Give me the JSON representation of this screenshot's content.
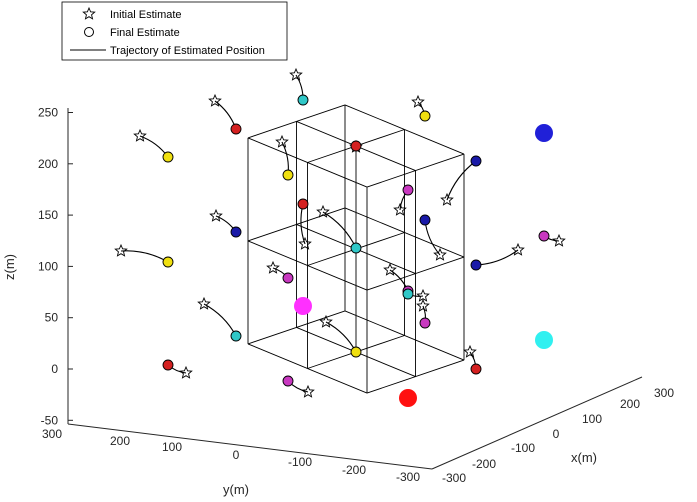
{
  "chart_data": {
    "type": "scatter",
    "title": "",
    "xlabel": "x(m)",
    "ylabel": "y(m)",
    "zlabel": "z(m)",
    "xlim": [
      -300,
      300
    ],
    "ylim": [
      -300,
      300
    ],
    "zlim": [
      -50,
      250
    ],
    "x_ticks": [
      "-300",
      "-200",
      "-100",
      "0",
      "100",
      "200",
      "300"
    ],
    "y_ticks": [
      "200",
      "100",
      "0",
      "-100",
      "-200",
      "-300"
    ],
    "y_top_tick": "300",
    "z_ticks": [
      "-50",
      "0",
      "50",
      "100",
      "150",
      "200",
      "250"
    ],
    "legend": {
      "position": "top-left",
      "items": [
        {
          "label": "Initial Estimate",
          "marker": "star"
        },
        {
          "label": "Final Estimate",
          "marker": "circle"
        },
        {
          "label": "Trajectory of Estimated Position",
          "marker": "line"
        }
      ]
    },
    "grid_lines_color": "#000000",
    "colors": {
      "yellow": "#f0e010",
      "red": "#d42020",
      "blue": "#1a1aa8",
      "cyan": "#30c8c8",
      "magenta": "#c838c0",
      "big_blue": "#2020d8",
      "big_red": "#ff1010",
      "big_cyan": "#30f0f0",
      "big_magenta": "#ff30ff"
    },
    "anchors": [
      {
        "color": "big_blue",
        "x": 200,
        "y": -200,
        "z": 200
      },
      {
        "color": "big_red",
        "x": -200,
        "y": -200,
        "z": 0
      },
      {
        "color": "big_cyan",
        "x": 200,
        "y": -200,
        "z": 0
      },
      {
        "color": "big_magenta",
        "x": 0,
        "y": 0,
        "z": 50
      }
    ],
    "nodes": [
      {
        "color": "yellow",
        "x": -200,
        "y": 200,
        "z": 200,
        "initial": {
          "x": -228,
          "y": 238,
          "z": 235
        }
      },
      {
        "color": "red",
        "x": -100,
        "y": 200,
        "z": 200,
        "initial": {
          "x": -120,
          "y": 228,
          "z": 238
        }
      },
      {
        "color": "cyan",
        "x": 0,
        "y": 200,
        "z": 200,
        "initial": {
          "x": 30,
          "y": 215,
          "z": 240
        }
      },
      {
        "color": "yellow",
        "x": -200,
        "y": 0,
        "z": 200,
        "initial": {
          "x": -170,
          "y": 20,
          "z": 215
        }
      },
      {
        "color": "red",
        "x": -100,
        "y": 0,
        "z": 200,
        "initial": {
          "x": -108,
          "y": -25,
          "z": 182
        }
      },
      {
        "color": "magenta",
        "x": -200,
        "y": -200,
        "z": 200,
        "initial": {
          "x": -220,
          "y": -205,
          "z": 175
        }
      },
      {
        "color": "blue",
        "x": -100,
        "y": -200,
        "z": 200,
        "initial": {
          "x": -110,
          "y": -185,
          "z": 183
        }
      },
      {
        "color": "yellow",
        "x": 100,
        "y": 200,
        "z": 200,
        "initial": {
          "x": 125,
          "y": 210,
          "z": 230
        }
      },
      {
        "color": "yellow",
        "x": -200,
        "y": 200,
        "z": 100,
        "initial": {
          "x": -235,
          "y": 150,
          "z": 120
        }
      },
      {
        "color": "blue",
        "x": -100,
        "y": 200,
        "z": 100,
        "initial": {
          "x": -130,
          "y": 175,
          "z": 125
        }
      },
      {
        "color": "red",
        "x": -100,
        "y": 0,
        "z": 100,
        "initial": {
          "x": -85,
          "y": 20,
          "z": 130
        }
      },
      {
        "color": "cyan",
        "x": 0,
        "y": 0,
        "z": 100,
        "initial": {
          "x": -20,
          "y": 38,
          "z": 123
        }
      },
      {
        "color": "blue",
        "x": 100,
        "y": -100,
        "z": 100,
        "initial": {
          "x": 115,
          "y": -112,
          "z": 90
        }
      },
      {
        "color": "magenta",
        "x": 100,
        "y": -200,
        "z": 100,
        "initial": {
          "x": 130,
          "y": -215,
          "z": 115
        }
      },
      {
        "color": "blue",
        "x": 100,
        "y": -200,
        "z": 100,
        "initial": {
          "x": 130,
          "y": -215,
          "z": 120
        }
      },
      {
        "color": "magenta",
        "x": 200,
        "y": -200,
        "z": 100,
        "initial": {
          "x": 230,
          "y": -225,
          "z": 110
        }
      },
      {
        "color": "magenta",
        "x": -200,
        "y": 0,
        "z": 100,
        "initial": {
          "x": -215,
          "y": 30,
          "z": 110
        }
      },
      {
        "color": "cyan",
        "x": -100,
        "y": -100,
        "z": 100,
        "initial": {
          "x": -90,
          "y": -85,
          "z": 110
        }
      },
      {
        "color": "cyan",
        "x": -200,
        "y": 200,
        "z": 0,
        "initial": {
          "x": -210,
          "y": 240,
          "z": 25
        }
      },
      {
        "color": "yellow",
        "x": 0,
        "y": 0,
        "z": 0,
        "initial": {
          "x": -20,
          "y": 40,
          "z": 12
        }
      },
      {
        "color": "magenta",
        "x": 0,
        "y": -200,
        "z": 0,
        "initial": {
          "x": 10,
          "y": -210,
          "z": 15
        }
      },
      {
        "color": "red",
        "x": -200,
        "y": 200,
        "z": -50,
        "initial": {
          "x": -180,
          "y": 180,
          "z": -60
        }
      },
      {
        "color": "magenta",
        "x": -100,
        "y": 0,
        "z": -50,
        "initial": {
          "x": -80,
          "y": -15,
          "z": -60
        }
      },
      {
        "color": "red",
        "x": 100,
        "y": -200,
        "z": -50,
        "initial": {
          "x": 85,
          "y": -205,
          "z": -35
        }
      }
    ]
  }
}
